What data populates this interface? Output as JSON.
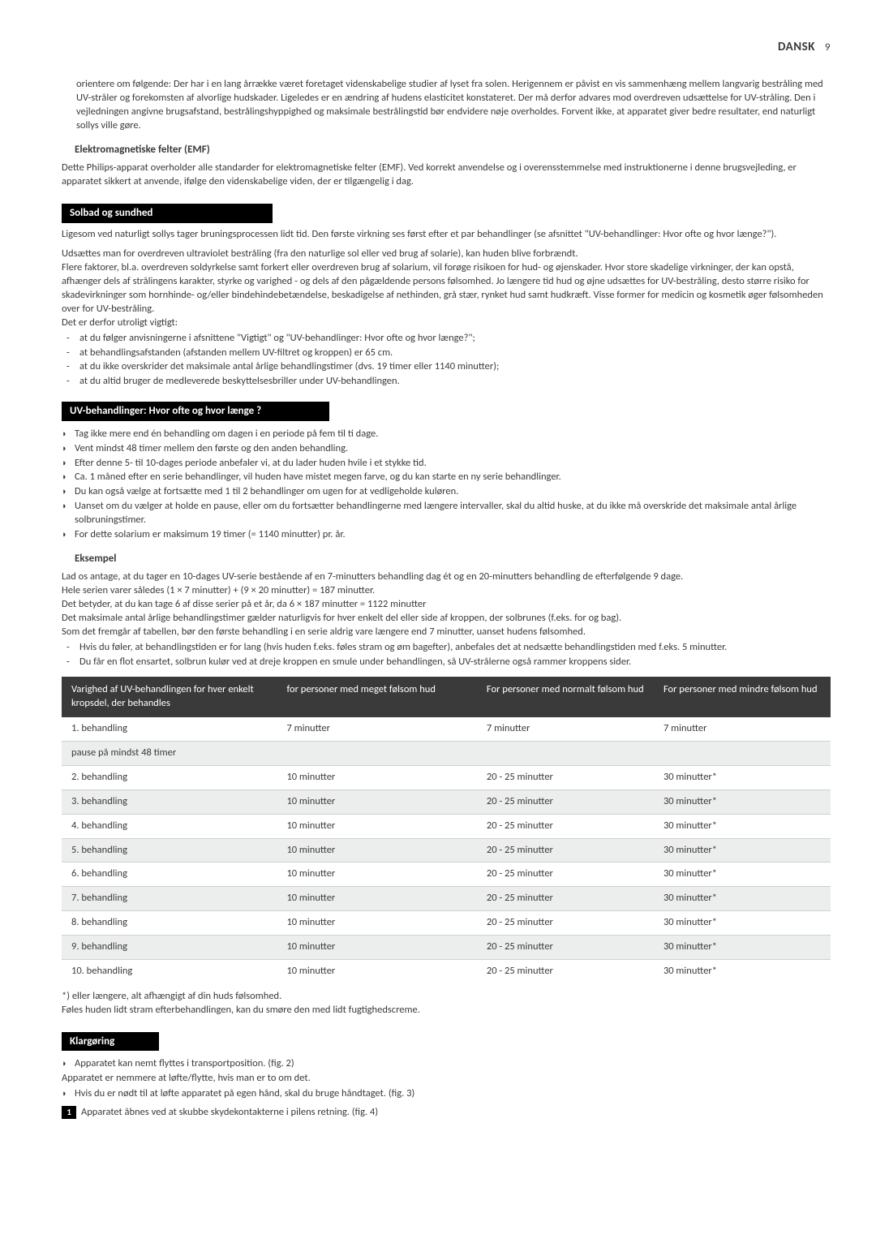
{
  "header": {
    "lang": "DANSK",
    "page": "9"
  },
  "intro_para": "orientere om følgende: Der har i en lang årrække været foretaget videnskabelige studier af lyset fra solen. Herigennem er påvist en vis sammenhæng mellem langvarig bestråling med UV-stråler og forekomsten af alvorlige hudskader. Ligeledes er en ændring af hudens elasticitet konstateret. Der må derfor advares mod overdreven udsættelse for UV-stråling. Den i vejledningen angivne brugsafstand, bestrålingshyppighed og maksimale bestrålingstid bør endvidere nøje overholdes. Forvent ikke, at apparatet giver bedre resultater, end naturligt sollys ville gøre.",
  "emf": {
    "heading": "Elektromagnetiske felter (EMF)",
    "text": "Dette Philips-apparat overholder alle standarder for elektromagnetiske felter (EMF). Ved korrekt anvendelse og i overensstemmelse med instruktionerne i denne brugsvejleding, er apparatet sikkert at anvende, ifølge den videnskabelige viden, der er tilgængelig i dag."
  },
  "solbad": {
    "bar": "Solbad og sundhed",
    "p1": "Ligesom ved naturligt sollys tager bruningsprocessen lidt tid. Den første virkning ses først efter et par behandlinger (se afsnittet \"UV-behandlinger: Hvor ofte og hvor længe?\").",
    "p2": "Udsættes man for overdreven ultraviolet bestråling (fra den naturlige sol eller ved brug af solarie), kan huden blive forbrændt.",
    "p3": "Flere faktorer, bl.a. overdreven soldyrkelse samt forkert eller overdreven brug af solarium, vil forøge risikoen for hud- og øjenskader. Hvor store skadelige virkninger, der kan opstå, afhænger dels af strålingens karakter, styrke og varighed - og dels af den pågældende persons følsomhed. Jo længere tid hud og øjne udsættes for UV-bestråling, desto større risiko for skadevirkninger som hornhinde- og/eller bindehindebetændelse, beskadigelse af nethinden, grå stær, rynket hud samt hudkræft. Visse former for medicin og kosmetik øger følsomheden over for UV-bestråling.",
    "p4": "Det er derfor utroligt vigtigt:",
    "bullets": [
      "at du følger anvisningerne i afsnittene \"Vigtigt\" og \"UV-behandlinger: Hvor ofte og hvor længe?\";",
      "at behandlingsafstanden (afstanden mellem UV-filtret og kroppen) er 65 cm.",
      "at du ikke overskrider det maksimale antal årlige behandlingstimer (dvs. 19 timer eller 1140 minutter);",
      "at du altid bruger de medleverede beskyttelsesbriller under UV-behandlingen."
    ]
  },
  "uv": {
    "bar": "UV-behandlinger: Hvor ofte og hvor længe ?",
    "bullets": [
      "Tag ikke mere end én behandling om dagen i en periode på fem til ti dage.",
      "Vent mindst 48 timer mellem den første og den anden behandling.",
      "Efter denne 5- til 10-dages periode anbefaler vi, at du lader huden hvile i et stykke tid.",
      "Ca. 1 måned efter en serie behandlinger, vil huden have mistet megen farve, og du kan starte en ny serie behandlinger.",
      "Du kan også vælge at fortsætte med 1 til 2 behandlinger om ugen for at vedligeholde kuløren.",
      "Uanset om du vælger at holde en pause, eller om du fortsætter behandlingerne med længere intervaller, skal du altid huske, at du ikke må overskride det maksimale antal årlige solbruningstimer.",
      "For dette solarium er maksimum 19 timer (= 1140 minutter) pr. år."
    ]
  },
  "eksempel": {
    "heading": "Eksempel",
    "p1": "Lad os antage, at du tager en 10-dages UV-serie bestående af en 7-minutters behandling dag ét og en 20-minutters behandling de efterfølgende 9 dage.",
    "p2": "Hele serien varer således (1 × 7 minutter) + (9 × 20 minutter) = 187 minutter.",
    "p3": "Det betyder, at du kan tage 6 af disse serier på et år, da 6 × 187 minutter = 1122 minutter",
    "p4": "Det maksimale antal årlige behandlingstimer gælder naturligvis for hver enkelt del eller side af kroppen, der solbrunes (f.eks. for og bag).",
    "p5": "Som det fremgår af tabellen, bør den første behandling i en serie aldrig vare længere end 7 minutter, uanset hudens følsomhed.",
    "dashes": [
      "Hvis du føler, at behandlingstiden er for lang (hvis huden f.eks. føles stram og øm bagefter), anbefales det at nedsætte behandlingstiden med f.eks. 5 minutter.",
      "Du får en flot ensartet, solbrun kulør ved at dreje kroppen en smule under behandlingen, så UV-strålerne også rammer kroppens sider."
    ]
  },
  "table": {
    "headers": [
      "Varighed af UV-behandlingen for hver enkelt kropsdel, der behandles",
      "for personer med meget følsom hud",
      "For personer med normalt følsom hud",
      "For personer med mindre følsom hud"
    ],
    "rows": [
      {
        "c": [
          "1. behandling",
          "7 minutter",
          "7 minutter",
          "7 minutter"
        ],
        "shade": false
      },
      {
        "c": [
          "pause på mindst 48 timer",
          "",
          "",
          ""
        ],
        "shade": true
      },
      {
        "c": [
          "2. behandling",
          "10 minutter",
          "20 - 25 minutter",
          "30 minutter*"
        ],
        "shade": false
      },
      {
        "c": [
          "3. behandling",
          "10 minutter",
          "20 - 25 minutter",
          "30 minutter*"
        ],
        "shade": true
      },
      {
        "c": [
          "4. behandling",
          "10 minutter",
          "20 - 25 minutter",
          "30 minutter*"
        ],
        "shade": false
      },
      {
        "c": [
          "5. behandling",
          "10 minutter",
          "20 - 25 minutter",
          "30 minutter*"
        ],
        "shade": true
      },
      {
        "c": [
          "6. behandling",
          "10 minutter",
          "20 - 25 minutter",
          "30 minutter*"
        ],
        "shade": false
      },
      {
        "c": [
          "7. behandling",
          "10 minutter",
          "20 - 25 minutter",
          "30 minutter*"
        ],
        "shade": true
      },
      {
        "c": [
          "8. behandling",
          "10 minutter",
          "20 - 25 minutter",
          "30 minutter*"
        ],
        "shade": false
      },
      {
        "c": [
          "9. behandling",
          "10 minutter",
          "20 - 25 minutter",
          "30 minutter*"
        ],
        "shade": true
      },
      {
        "c": [
          "10. behandling",
          "10 minutter",
          "20 - 25 minutter",
          "30 minutter*"
        ],
        "shade": false
      }
    ]
  },
  "footnote1": "*) eller længere, alt afhængigt af din huds følsomhed.",
  "footnote2": "Føles huden lidt stram efterbehandlingen, kan du smøre den med lidt fugtighedscreme.",
  "klar": {
    "bar": "Klargøring",
    "tri1": "Apparatet kan nemt flyttes i transportposition. (fig. 2)",
    "line": "Apparatet er nemmere at løfte/flytte, hvis man er to om det.",
    "tri2": "Hvis du er nødt til at løfte apparatet på egen hånd, skal du bruge håndtaget. (fig. 3)",
    "step1": "Apparatet åbnes ved at skubbe skydekontakterne i pilens retning. (fig. 4)"
  }
}
